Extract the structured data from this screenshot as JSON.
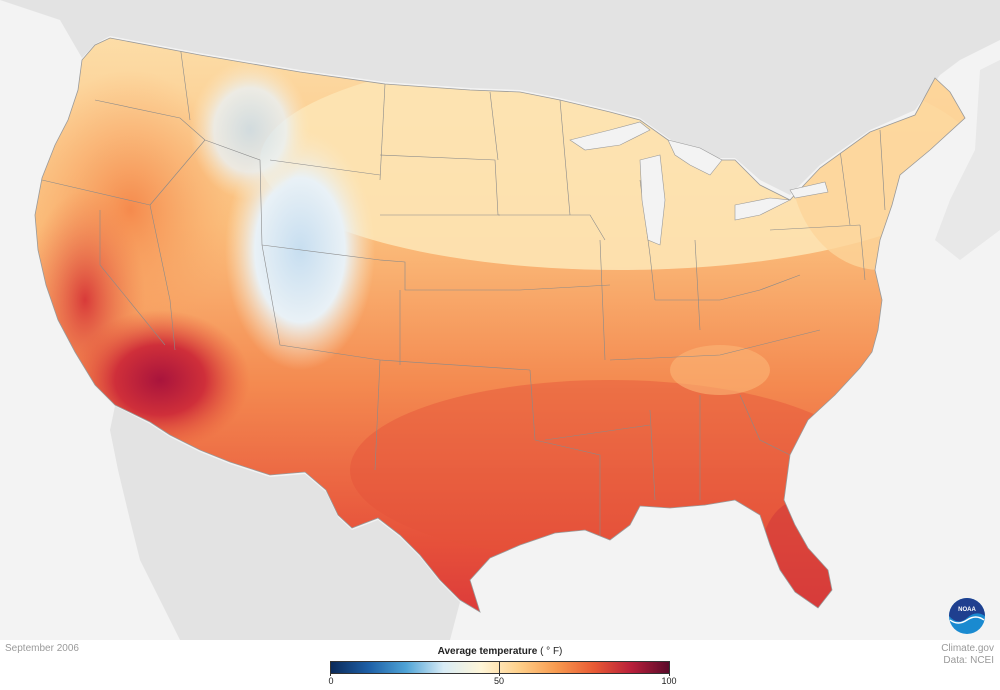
{
  "map": {
    "variable": "Average temperature",
    "unit": "( ° F)",
    "date": "September 2006",
    "region": "Contiguous United States"
  },
  "legend": {
    "title": "Average temperature",
    "unit": "( ° F)",
    "min": 0,
    "mid": 50,
    "max": 100,
    "tick_labels": [
      "0",
      "50",
      "100"
    ],
    "colors": [
      "#0b2a5a",
      "#1d5fa6",
      "#4fa3d6",
      "#d8ecf6",
      "#fff6d8",
      "#ffd08a",
      "#f79a4f",
      "#e85a34",
      "#b81f3a",
      "#5a0a2a"
    ]
  },
  "credits": {
    "line1": "Climate.gov",
    "line2": "Data: NCEI"
  },
  "logo": {
    "text": "NOAA",
    "colors": [
      "#1f3f8f",
      "#1a8ad0"
    ]
  }
}
